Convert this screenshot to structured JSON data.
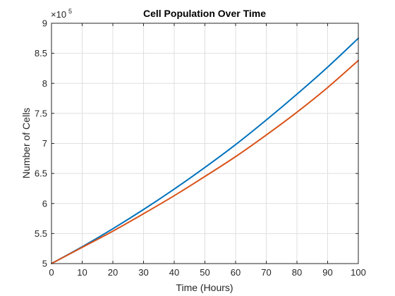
{
  "chart_data": {
    "type": "line",
    "title": "Cell Population Over Time",
    "xlabel": "Time (Hours)",
    "ylabel": "Number of Cells",
    "xlim": [
      0,
      100
    ],
    "ylim": [
      500000,
      900000
    ],
    "x_ticks": [
      0,
      10,
      20,
      30,
      40,
      50,
      60,
      70,
      80,
      90,
      100
    ],
    "x_tick_labels": [
      "0",
      "10",
      "20",
      "30",
      "40",
      "50",
      "60",
      "70",
      "80",
      "90",
      "100"
    ],
    "y_ticks": [
      500000,
      550000,
      600000,
      650000,
      700000,
      750000,
      800000,
      850000,
      900000
    ],
    "y_tick_labels": [
      "5",
      "5.5",
      "6",
      "6.5",
      "7",
      "7.5",
      "8",
      "8.5",
      "9"
    ],
    "y_multiplier_base": "×10",
    "y_multiplier_exp": "5",
    "grid": true,
    "x": [
      0,
      10,
      20,
      30,
      40,
      50,
      60,
      70,
      80,
      90,
      100
    ],
    "series": [
      {
        "color": "#0072bd",
        "values": [
          500000,
          528000,
          558000,
          590000,
          624000,
          660000,
          698000,
          739000,
          782000,
          827000,
          875000
        ]
      },
      {
        "color": "#d95319",
        "values": [
          500000,
          527000,
          554000,
          583000,
          613000,
          645000,
          678000,
          714000,
          752000,
          793000,
          838000
        ]
      }
    ]
  }
}
